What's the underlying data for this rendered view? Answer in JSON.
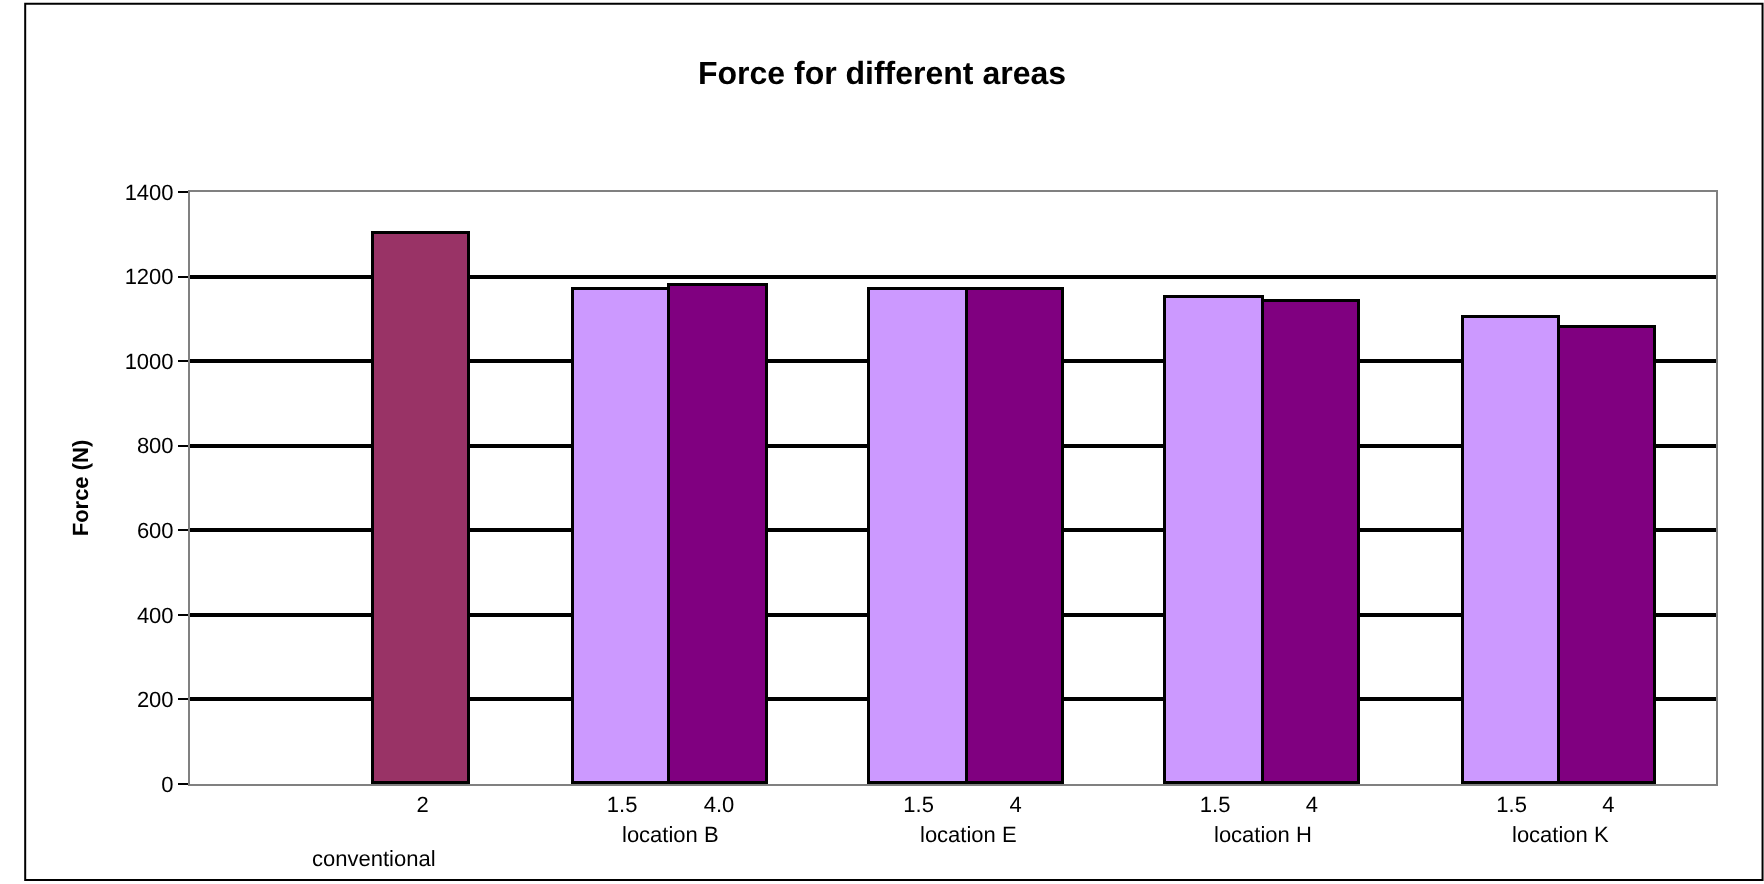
{
  "chart_data": {
    "type": "bar",
    "title": "Force for different areas",
    "ylabel": "Force (N)",
    "categories": [
      null,
      "2",
      "1.5",
      "4.0",
      "1.5",
      "4",
      "1.5",
      "4",
      "1.5",
      "4"
    ],
    "values": [
      null,
      1300,
      1170,
      1180,
      1170,
      1170,
      1150,
      1140,
      1100,
      1080
    ],
    "colors": [
      "#cc99ff",
      "#993366",
      "#cc99ff",
      "#800080",
      "#cc99ff",
      "#800080",
      "#cc99ff",
      "#800080",
      "#cc99ff",
      "#800080"
    ],
    "annotations": [
      "conventional",
      "location B",
      "location E",
      "location H",
      "location K"
    ],
    "ylim": [
      0,
      1400
    ],
    "yticks": [
      0,
      200,
      400,
      600,
      800,
      1000,
      1200,
      1400
    ],
    "grid": "y"
  }
}
